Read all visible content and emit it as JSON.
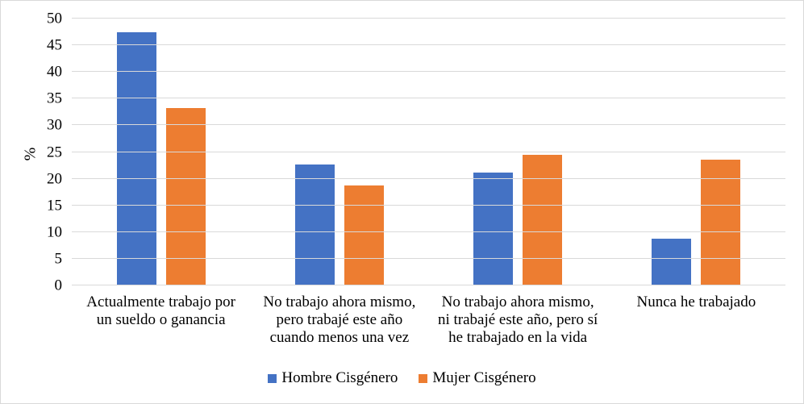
{
  "chart_data": {
    "type": "bar",
    "ylabel": "%",
    "ylim": [
      0,
      50
    ],
    "ytick_step": 5,
    "grid": true,
    "legend_position": "bottom",
    "categories": [
      "Actualmente trabajo por un sueldo o ganancia",
      "No trabajo ahora mismo, pero trabajé este año cuando menos una vez",
      "No trabajo ahora mismo, ni trabajé este año, pero sí he trabajado en la vida",
      "Nunca he trabajado"
    ],
    "category_line_breaks": [
      [
        "Actualmente trabajo por",
        "un sueldo o ganancia"
      ],
      [
        "No trabajo ahora mismo,",
        "pero trabajé este año",
        "cuando menos una vez"
      ],
      [
        "No trabajo ahora mismo,",
        "ni trabajé este año, pero sí",
        "he trabajado en la vida"
      ],
      [
        "Nunca he trabajado"
      ]
    ],
    "series": [
      {
        "name": "Hombre Cisgénero",
        "color": "#4472C4",
        "values": [
          47.5,
          22.7,
          21.2,
          8.8
        ]
      },
      {
        "name": "Mujer Cisgénero",
        "color": "#ED7D31",
        "values": [
          33.2,
          18.8,
          24.4,
          23.5
        ]
      }
    ]
  },
  "styles": {
    "gridline_color": "#D9D9D9",
    "border_color": "#D9D9D9",
    "background": "#FFFFFF"
  }
}
